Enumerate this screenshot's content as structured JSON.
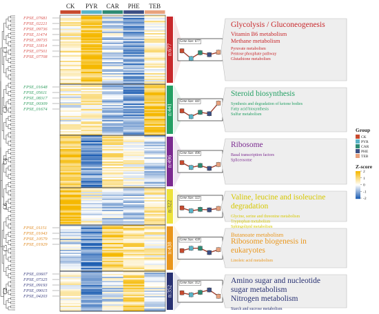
{
  "chart_data": {
    "type": "heatmap",
    "columns": [
      "CK",
      "PYR",
      "CAR",
      "PHE",
      "TEB"
    ],
    "column_colors": [
      "#c84b2f",
      "#5ab4c8",
      "#2e8b74",
      "#3d4f84",
      "#e8a27e"
    ],
    "clusters": [
      {
        "id": "C1",
        "n_label": "n:677",
        "gene_size": "Gene Size: 677",
        "bar_color": "#c8282c",
        "genes": [
          "FPSE_07681",
          "FPSE_02221",
          "FPSE_09736",
          "FPSE_11474",
          "FPSE_09735",
          "FPSE_11814",
          "FPSE_07501",
          "FPSE_07708"
        ],
        "gene_color": "#d9534f",
        "profile": [
          0.6,
          -0.2,
          0.4,
          0.2,
          0.45
        ],
        "pattern": [
          0.45,
          1.6,
          -0.35,
          -1.1,
          0.4
        ],
        "pathways": [
          {
            "text": "Glycolysis / Gluconeogenesis",
            "size": "large"
          },
          {
            "text": "Vitamin B6 metabolism",
            "size": "medium"
          },
          {
            "text": "Methane metabolism",
            "size": "medium"
          },
          {
            "text": "Pyruvate metabolism",
            "size": "small"
          },
          {
            "text": "Pentose phosphate pathway",
            "size": "small"
          },
          {
            "text": "Glutathione metabolism",
            "size": "small"
          }
        ]
      },
      {
        "id": "C3",
        "n_label": "n:441",
        "gene_size": "Gene Size: 441",
        "bar_color": "#24a064",
        "genes": [
          "FPSE_01648",
          "FPSE_05611",
          "FPSE_08317",
          "FPSE_00309",
          "FPSE_01674"
        ],
        "gene_color": "#2e9d5e",
        "profile": [
          0.6,
          0.0,
          0.45,
          0.3,
          1.4
        ],
        "pattern": [
          0.1,
          0.4,
          -0.6,
          -1.2,
          1.5
        ],
        "pathways": [
          {
            "text": "Steroid biosynthesis",
            "size": "large"
          },
          {
            "text": "Synthesis and degradation of ketone bodies",
            "size": "small"
          },
          {
            "text": "Fatty acid biosynthesis",
            "size": "small"
          },
          {
            "text": "Sulfur metabolism",
            "size": "small"
          }
        ]
      },
      {
        "id": "C4",
        "n_label": "n:496",
        "gene_size": "Gene Size: 496",
        "bar_color": "#7b2a90",
        "genes": [],
        "gene_color": "#7b2a90",
        "profile": [
          0.6,
          0.1,
          0.3,
          0.0,
          0.4
        ],
        "pattern": [
          1.4,
          -1.3,
          0.6,
          0.2,
          -0.5
        ],
        "pathways": [
          {
            "text": "Ribosome",
            "size": "large"
          },
          {
            "text": "Basal transcription factors",
            "size": "small"
          },
          {
            "text": "Spliceosome",
            "size": "small"
          }
        ]
      },
      {
        "id": "C6",
        "n_label": "n:322",
        "gene_size": "Gene Size: 322",
        "bar_color": "#ede23a",
        "genes": [],
        "gene_color": "#d4c900",
        "profile": [
          0.55,
          0.25,
          0.4,
          0.35,
          0.5
        ],
        "pattern": [
          1.5,
          0.1,
          -0.4,
          -0.6,
          0.6
        ],
        "pathways": [
          {
            "text": "Valine, leucine and isoleucine degradation",
            "size": "large"
          },
          {
            "text": "Glycine, serine and threonine metabolism",
            "size": "small"
          },
          {
            "text": "Tryptophan metabolism",
            "size": "small"
          },
          {
            "text": "Sphingolipid metabolism",
            "size": "small"
          }
        ]
      },
      {
        "id": "C5",
        "n_label": "n:438",
        "gene_size": "Gene Size: 438",
        "bar_color": "#e9961c",
        "genes": [
          "FPSE_01151",
          "FPSE_01043",
          "FPSE_10579",
          "FPSE_01929"
        ],
        "gene_color": "#e08a22",
        "profile": [
          0.45,
          0.7,
          0.7,
          0.25,
          0.55
        ],
        "pattern": [
          -0.4,
          -1.4,
          1.2,
          0.9,
          0.4
        ],
        "pathways": [
          {
            "text": "Butanoate metabolism",
            "size": "medium"
          },
          {
            "text": "Ribosome biogenesis in eukaryotes",
            "size": "large"
          },
          {
            "text": "Linoleic acid metabolism",
            "size": "small"
          }
        ]
      },
      {
        "id": "C2",
        "n_label": "n:352",
        "gene_size": "Gene Size: 352",
        "bar_color": "#283172",
        "genes": [
          "FPSE_03607",
          "FPSE_07325",
          "FPSE_09193",
          "FPSE_09015",
          "FPSE_04203"
        ],
        "gene_color": "#3b3f80",
        "profile": [
          0.55,
          0.35,
          0.6,
          0.85,
          0.2
        ],
        "pattern": [
          0.2,
          -1.1,
          -0.3,
          1.0,
          -0.4
        ],
        "pathways": [
          {
            "text": "Amino sugar and nucleotide sugar metabolism",
            "size": "large"
          },
          {
            "text": "Nitrogen metabolism",
            "size": "large"
          },
          {
            "text": "Starch and sucrose metabolism",
            "size": "small"
          }
        ]
      }
    ],
    "legend": {
      "group_title": "Group",
      "groups": [
        "CK",
        "PYR",
        "CAR",
        "PHE",
        "TEB"
      ],
      "zscore_title": "Z-score",
      "zscore_ticks": [
        "2",
        "1",
        "0",
        "-1",
        "-2"
      ],
      "zscore_range": [
        -2,
        2
      ],
      "placement": "right"
    }
  },
  "colors": {
    "zscore_high": "#f5b800",
    "zscore_mid": "#ffffff",
    "zscore_low": "#1f5fb3",
    "pathway_box": "#eeeeee",
    "trend_line": "#9e3b2a"
  }
}
